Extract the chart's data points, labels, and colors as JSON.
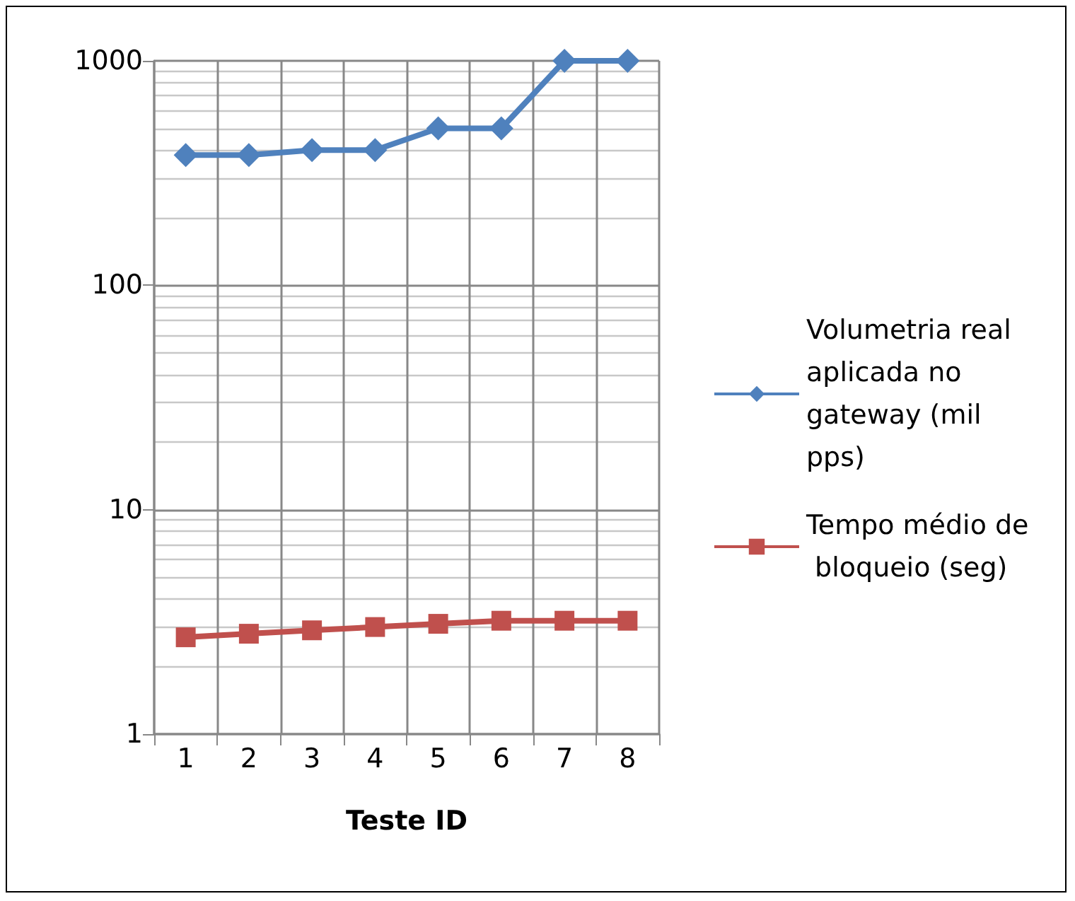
{
  "chart_data": {
    "type": "line",
    "xlabel": "Teste ID",
    "categories": [
      "1",
      "2",
      "3",
      "4",
      "5",
      "6",
      "7",
      "8"
    ],
    "series": [
      {
        "name": "Volumetria real aplicada no gateway (mil pps)",
        "color": "#4f81bd",
        "marker": "diamond",
        "values": [
          380,
          380,
          400,
          400,
          500,
          500,
          1000,
          1000
        ]
      },
      {
        "name": "Tempo médio de bloqueio (seg)",
        "color": "#c0504d",
        "marker": "square",
        "values": [
          2.7,
          2.8,
          2.9,
          3.0,
          3.1,
          3.2,
          3.2,
          3.2
        ]
      }
    ],
    "log": "y",
    "ylim": [
      1,
      1000
    ],
    "yticks": [
      1,
      10,
      100,
      1000
    ],
    "grid": true,
    "legend": "right"
  }
}
